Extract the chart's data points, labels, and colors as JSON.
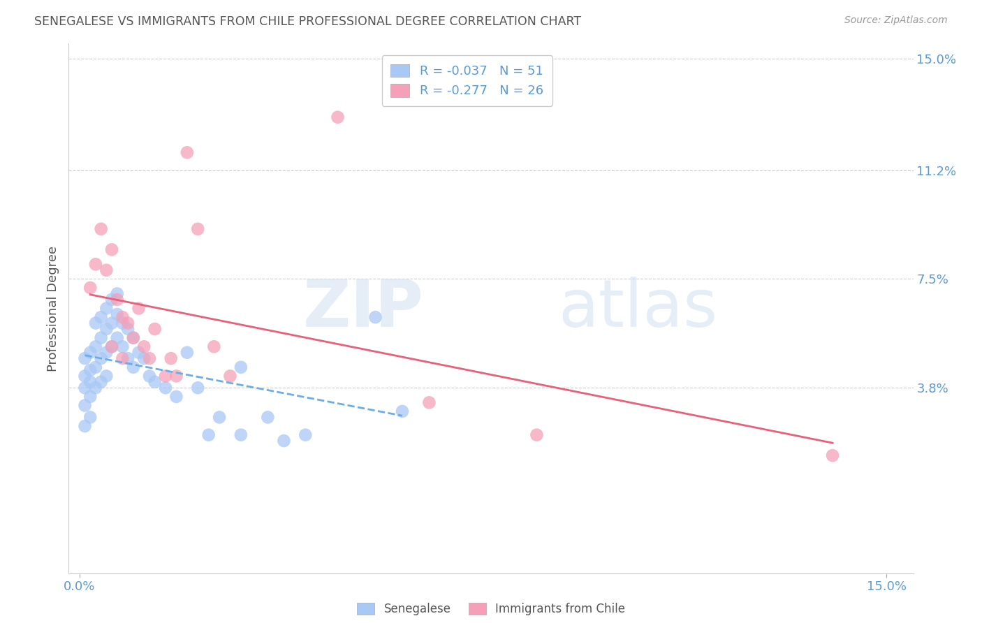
{
  "title": "SENEGALESE VS IMMIGRANTS FROM CHILE PROFESSIONAL DEGREE CORRELATION CHART",
  "source": "Source: ZipAtlas.com",
  "ylabel": "Professional Degree",
  "xlim": [
    -0.002,
    0.155
  ],
  "ylim": [
    -0.025,
    0.155
  ],
  "ytick_labels_right": [
    "15.0%",
    "11.2%",
    "7.5%",
    "3.8%"
  ],
  "ytick_vals_right": [
    0.15,
    0.112,
    0.075,
    0.038
  ],
  "watermark_zip": "ZIP",
  "watermark_atlas": "atlas",
  "legend_entry_1": "R = -0.037   N = 51",
  "legend_entry_2": "R = -0.277   N = 26",
  "senegalese_color": "#a8c8f5",
  "chile_color": "#f5a0b8",
  "trendline_senegalese_color": "#6aaee8",
  "trendline_chile_color": "#e8607a",
  "background_color": "#ffffff",
  "grid_color": "#cccccc",
  "axis_label_color": "#5b9bd5",
  "title_color": "#555555",
  "senegalese_x": [
    0.001,
    0.001,
    0.001,
    0.001,
    0.001,
    0.002,
    0.002,
    0.002,
    0.002,
    0.002,
    0.003,
    0.003,
    0.003,
    0.003,
    0.004,
    0.004,
    0.004,
    0.004,
    0.005,
    0.005,
    0.005,
    0.005,
    0.006,
    0.006,
    0.006,
    0.007,
    0.007,
    0.007,
    0.008,
    0.008,
    0.009,
    0.009,
    0.01,
    0.01,
    0.011,
    0.012,
    0.013,
    0.014,
    0.016,
    0.018,
    0.02,
    0.022,
    0.024,
    0.026,
    0.03,
    0.03,
    0.035,
    0.038,
    0.042,
    0.055,
    0.06
  ],
  "senegalese_y": [
    0.048,
    0.042,
    0.038,
    0.032,
    0.025,
    0.05,
    0.044,
    0.04,
    0.035,
    0.028,
    0.06,
    0.052,
    0.045,
    0.038,
    0.062,
    0.055,
    0.048,
    0.04,
    0.065,
    0.058,
    0.05,
    0.042,
    0.068,
    0.06,
    0.052,
    0.07,
    0.063,
    0.055,
    0.06,
    0.052,
    0.058,
    0.048,
    0.055,
    0.045,
    0.05,
    0.048,
    0.042,
    0.04,
    0.038,
    0.035,
    0.05,
    0.038,
    0.022,
    0.028,
    0.045,
    0.022,
    0.028,
    0.02,
    0.022,
    0.062,
    0.03
  ],
  "chile_x": [
    0.002,
    0.003,
    0.004,
    0.005,
    0.006,
    0.006,
    0.007,
    0.008,
    0.008,
    0.009,
    0.01,
    0.011,
    0.012,
    0.013,
    0.014,
    0.016,
    0.017,
    0.018,
    0.02,
    0.022,
    0.025,
    0.028,
    0.048,
    0.065,
    0.085,
    0.14
  ],
  "chile_y": [
    0.072,
    0.08,
    0.092,
    0.078,
    0.052,
    0.085,
    0.068,
    0.062,
    0.048,
    0.06,
    0.055,
    0.065,
    0.052,
    0.048,
    0.058,
    0.042,
    0.048,
    0.042,
    0.118,
    0.092,
    0.052,
    0.042,
    0.13,
    0.033,
    0.022,
    0.015
  ]
}
